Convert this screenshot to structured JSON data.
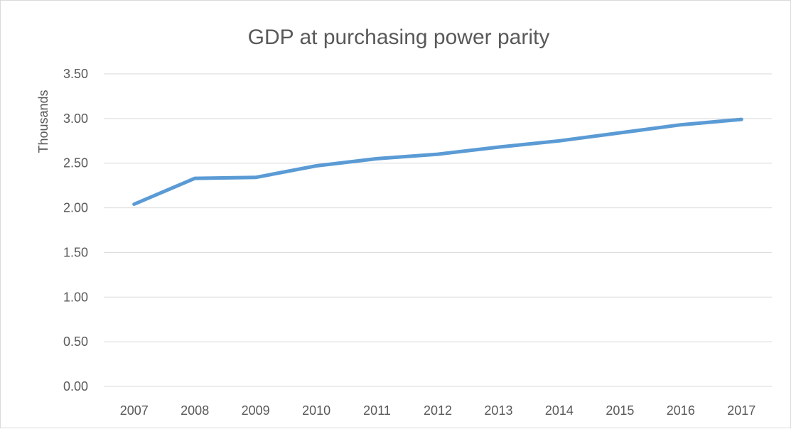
{
  "chart_data": {
    "type": "line",
    "title": "GDP at purchasing power parity",
    "xlabel": "",
    "ylabel": "Thousands",
    "categories": [
      "2007",
      "2008",
      "2009",
      "2010",
      "2011",
      "2012",
      "2013",
      "2014",
      "2015",
      "2016",
      "2017"
    ],
    "series": [
      {
        "values": [
          2.04,
          2.33,
          2.34,
          2.47,
          2.55,
          2.6,
          2.68,
          2.75,
          2.84,
          2.93,
          2.99
        ],
        "color": "#5b9bd5"
      }
    ],
    "ylim": [
      0,
      3.5
    ],
    "yticks": [
      "0.00",
      "0.50",
      "1.00",
      "1.50",
      "2.00",
      "2.50",
      "3.00",
      "3.50"
    ],
    "grid": true,
    "legend": "none"
  }
}
